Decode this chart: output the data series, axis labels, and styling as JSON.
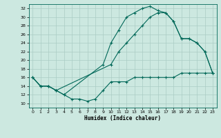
{
  "xlabel": "Humidex (Indice chaleur)",
  "ylabel": "",
  "bg_color": "#cce8e0",
  "grid_color": "#aaccc4",
  "line_color": "#006858",
  "xlim": [
    -0.5,
    23.5
  ],
  "ylim": [
    9,
    33
  ],
  "xticks": [
    0,
    1,
    2,
    3,
    4,
    5,
    6,
    7,
    8,
    9,
    10,
    11,
    12,
    13,
    14,
    15,
    16,
    17,
    18,
    19,
    20,
    21,
    22,
    23
  ],
  "yticks": [
    10,
    12,
    14,
    16,
    18,
    20,
    22,
    24,
    26,
    28,
    30,
    32
  ],
  "line1_x": [
    0,
    1,
    2,
    3,
    4,
    9,
    10,
    11,
    12,
    13,
    14,
    15,
    16,
    17,
    18,
    19,
    20,
    21,
    22,
    23
  ],
  "line1_y": [
    16,
    14,
    14,
    13,
    12,
    19,
    24,
    27,
    30,
    31,
    32,
    32.5,
    31.5,
    31,
    29,
    25,
    25,
    24,
    22,
    17
  ],
  "line2_x": [
    0,
    1,
    2,
    3,
    10,
    11,
    12,
    13,
    14,
    15,
    16,
    17,
    18,
    19,
    20,
    21,
    22,
    23
  ],
  "line2_y": [
    16,
    14,
    14,
    13,
    19,
    22,
    24,
    26,
    28,
    30,
    31,
    31,
    29,
    25,
    25,
    24,
    22,
    17
  ],
  "line3_x": [
    0,
    1,
    2,
    3,
    4,
    5,
    6,
    7,
    8,
    9,
    10,
    11,
    12,
    13,
    14,
    15,
    16,
    17,
    18,
    19,
    20,
    21,
    22,
    23
  ],
  "line3_y": [
    16,
    14,
    14,
    13,
    12,
    11,
    11,
    10.5,
    11,
    13,
    15,
    15,
    15,
    16,
    16,
    16,
    16,
    16,
    16,
    17,
    17,
    17,
    17,
    17
  ]
}
